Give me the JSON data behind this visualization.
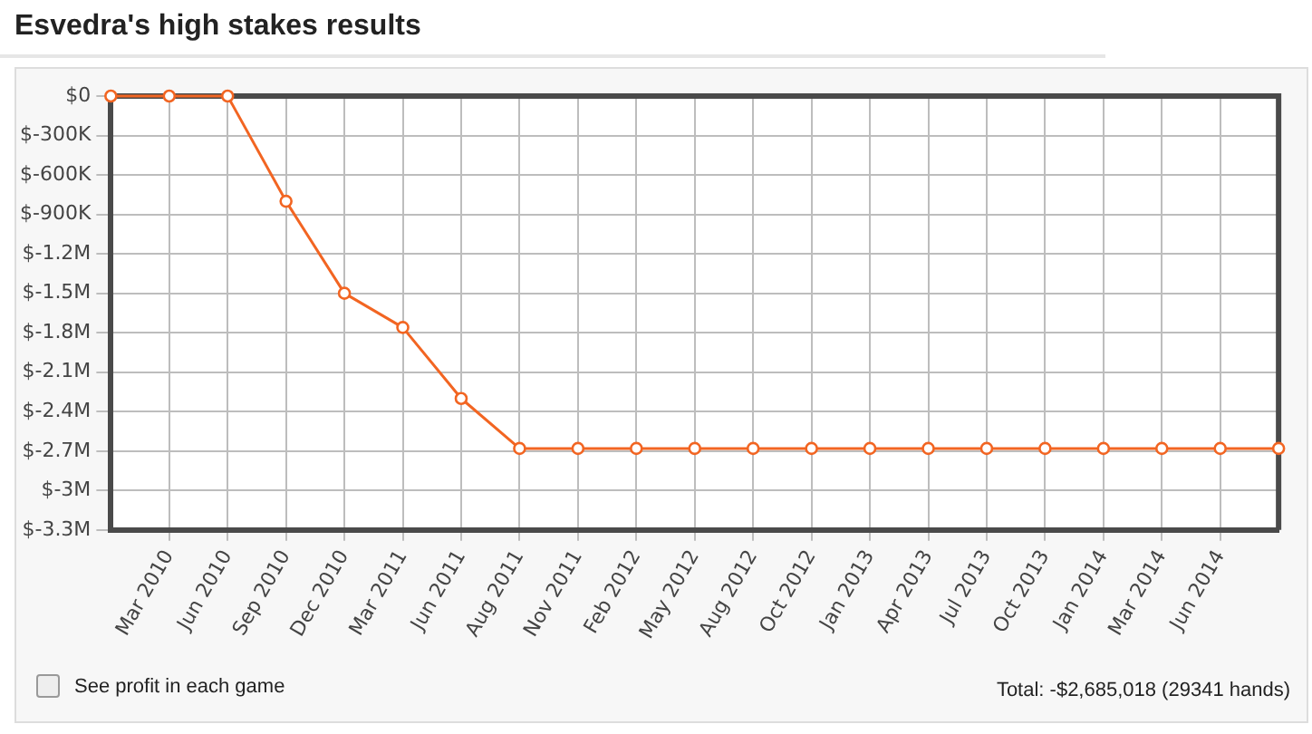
{
  "chart_data": {
    "type": "line",
    "title": "Esvedra's high stakes results",
    "categories": [
      null,
      "Mar 2010",
      "Jun 2010",
      "Sep 2010",
      "Dec 2010",
      "Mar 2011",
      "Jun 2011",
      "Aug 2011",
      "Nov 2011",
      "Feb 2012",
      "May 2012",
      "Aug 2012",
      "Oct 2012",
      "Jan 2013",
      "Apr 2013",
      "Jul 2013",
      "Oct 2013",
      "Jan 2014",
      "Mar 2014",
      "Jun 2014",
      null
    ],
    "series": [
      {
        "color": "#f26522",
        "values": [
          0,
          0,
          0,
          -800000,
          -1500000,
          -1760000,
          -2300000,
          -2680000,
          -2680000,
          -2680000,
          -2680000,
          -2680000,
          -2680000,
          -2680000,
          -2680000,
          -2680000,
          -2680000,
          -2680000,
          -2680000,
          -2680000,
          -2680000
        ]
      }
    ],
    "ylim": [
      -3300000,
      0
    ],
    "yticks": [
      {
        "value": 0,
        "label": "$0"
      },
      {
        "value": -300000,
        "label": "$-300K"
      },
      {
        "value": -600000,
        "label": "$-600K"
      },
      {
        "value": -900000,
        "label": "$-900K"
      },
      {
        "value": -1200000,
        "label": "$-1.2M"
      },
      {
        "value": -1500000,
        "label": "$-1.5M"
      },
      {
        "value": -1800000,
        "label": "$-1.8M"
      },
      {
        "value": -2100000,
        "label": "$-2.1M"
      },
      {
        "value": -2400000,
        "label": "$-2.4M"
      },
      {
        "value": -2700000,
        "label": "$-2.7M"
      },
      {
        "value": -3000000,
        "label": "$-3M"
      },
      {
        "value": -3300000,
        "label": "$-3.3M"
      }
    ],
    "grid": true,
    "marker": "circle",
    "line_style": "solid",
    "annotations": [
      "See profit in each game",
      "Total: -$2,685,018 (29341 hands)"
    ]
  }
}
